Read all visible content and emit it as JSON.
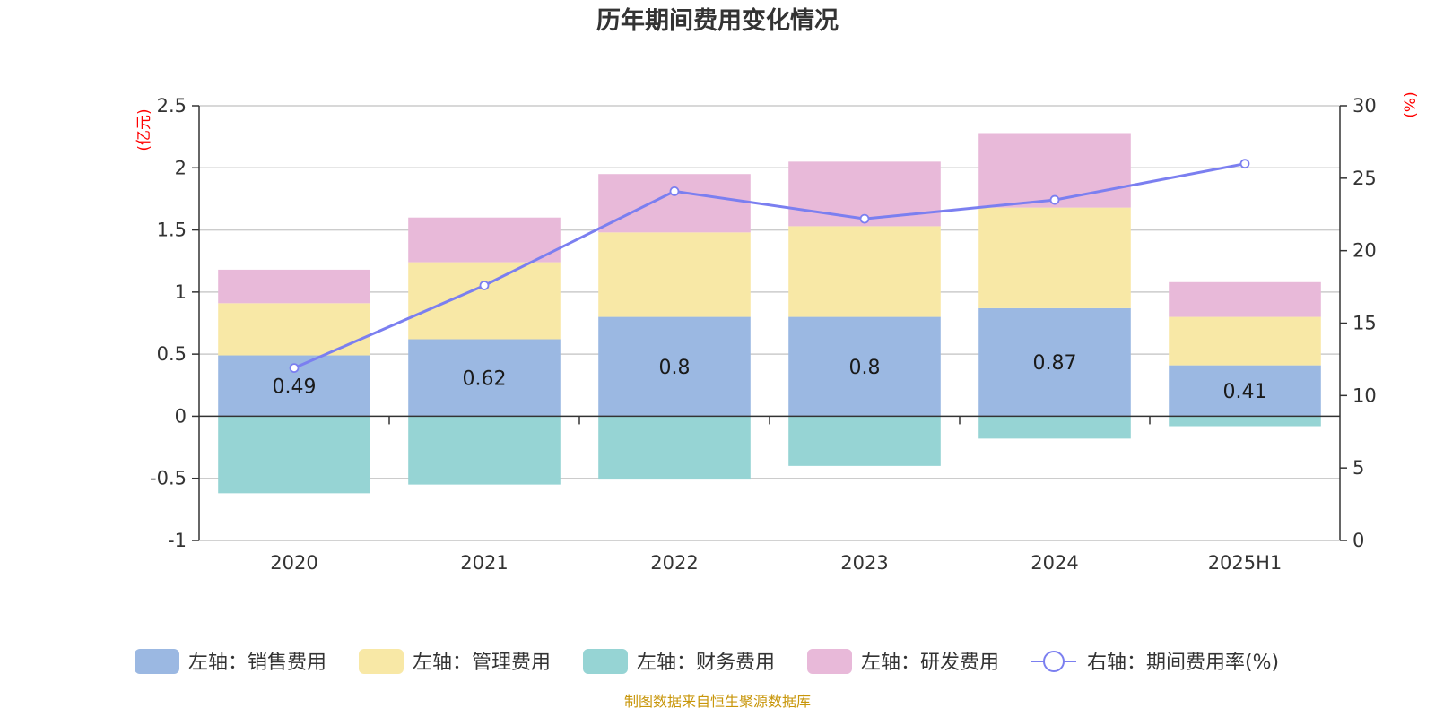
{
  "chart_data": {
    "type": "bar",
    "title": "历年期间费用变化情况",
    "categories": [
      "2020",
      "2021",
      "2022",
      "2023",
      "2024",
      "2025H1"
    ],
    "left_axis": {
      "unit": "(亿元)",
      "ylim": [
        -1,
        2.5
      ],
      "ticks": [
        "-1",
        "-0.5",
        "0",
        "0.5",
        "1",
        "1.5",
        "2",
        "2.5"
      ],
      "tick_values": [
        -1,
        -0.5,
        0,
        0.5,
        1,
        1.5,
        2,
        2.5
      ]
    },
    "right_axis": {
      "unit": "(%)",
      "ylim": [
        0,
        30
      ],
      "ticks": [
        "0",
        "5",
        "10",
        "15",
        "20",
        "25",
        "30"
      ],
      "tick_values": [
        0,
        5,
        10,
        15,
        20,
        25,
        30
      ]
    },
    "series": [
      {
        "name": "左轴：销售费用",
        "type": "bar",
        "axis": "left",
        "color": "#9bb8e2",
        "values": [
          0.49,
          0.62,
          0.8,
          0.8,
          0.87,
          0.41
        ],
        "labels": [
          "0.49",
          "0.62",
          "0.8",
          "0.8",
          "0.87",
          "0.41"
        ]
      },
      {
        "name": "左轴：管理费用",
        "type": "bar",
        "axis": "left",
        "color": "#f8e8a6",
        "values": [
          0.42,
          0.62,
          0.68,
          0.73,
          0.81,
          0.39
        ]
      },
      {
        "name": "左轴：财务费用",
        "type": "bar",
        "axis": "left",
        "color": "#96d4d4",
        "values": [
          -0.62,
          -0.55,
          -0.51,
          -0.4,
          -0.18,
          -0.08
        ]
      },
      {
        "name": "左轴：研发费用",
        "type": "bar",
        "axis": "left",
        "color": "#e8b9d9",
        "values": [
          0.27,
          0.36,
          0.47,
          0.52,
          0.6,
          0.28
        ]
      },
      {
        "name": "右轴：期间费用率(%)",
        "type": "line",
        "axis": "right",
        "color": "#7b7ff0",
        "values": [
          11.9,
          17.6,
          24.1,
          22.2,
          23.5,
          26.0
        ]
      }
    ],
    "grid": true,
    "legend_position": "bottom"
  },
  "footer": {
    "source": "制图数据来自恒生聚源数据库"
  }
}
